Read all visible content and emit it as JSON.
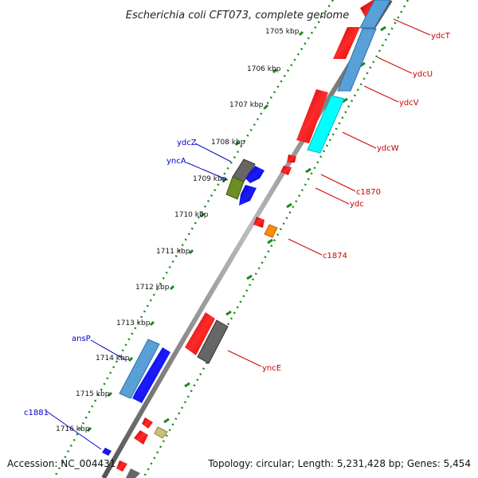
{
  "title": "Escherichia coli CFT073, complete genome",
  "footer": {
    "accession": "Accession: NC_004431",
    "summary": "Topology: circular; Length: 5,231,428 bp; Genes: 5,454"
  },
  "colors": {
    "backbone": "#7f7f7f",
    "tick": "#1a8a1a",
    "forward_label": "#0000cc",
    "reverse_label": "#cc0000",
    "cds_red": "#ff0000",
    "cds_blue": "#0000ff",
    "rna_blue": "#5aa0d8",
    "cds_cyan": "#00ffff",
    "cds_olive": "#6b8e23",
    "cds_gray": "#666666",
    "cds_orange": "#ff8c00",
    "cds_khaki": "#c8c27a"
  },
  "scale_labels": [
    "1705 kbp",
    "1706 kbp",
    "1707 kbp",
    "1708 kbp",
    "1709 kbp",
    "1710 kbp",
    "1711 kbp",
    "1712 kbp",
    "1713 kbp",
    "1714 kbp",
    "1715 kbp",
    "1716 kbp"
  ],
  "forward_gene_labels": [
    "ydcZ",
    "yncA",
    "ansP",
    "c1881"
  ],
  "reverse_gene_labels": [
    "ydcT",
    "ydcU",
    "ydcV",
    "ydcW",
    "c1870",
    "ydc",
    "c1874",
    "yncE"
  ]
}
